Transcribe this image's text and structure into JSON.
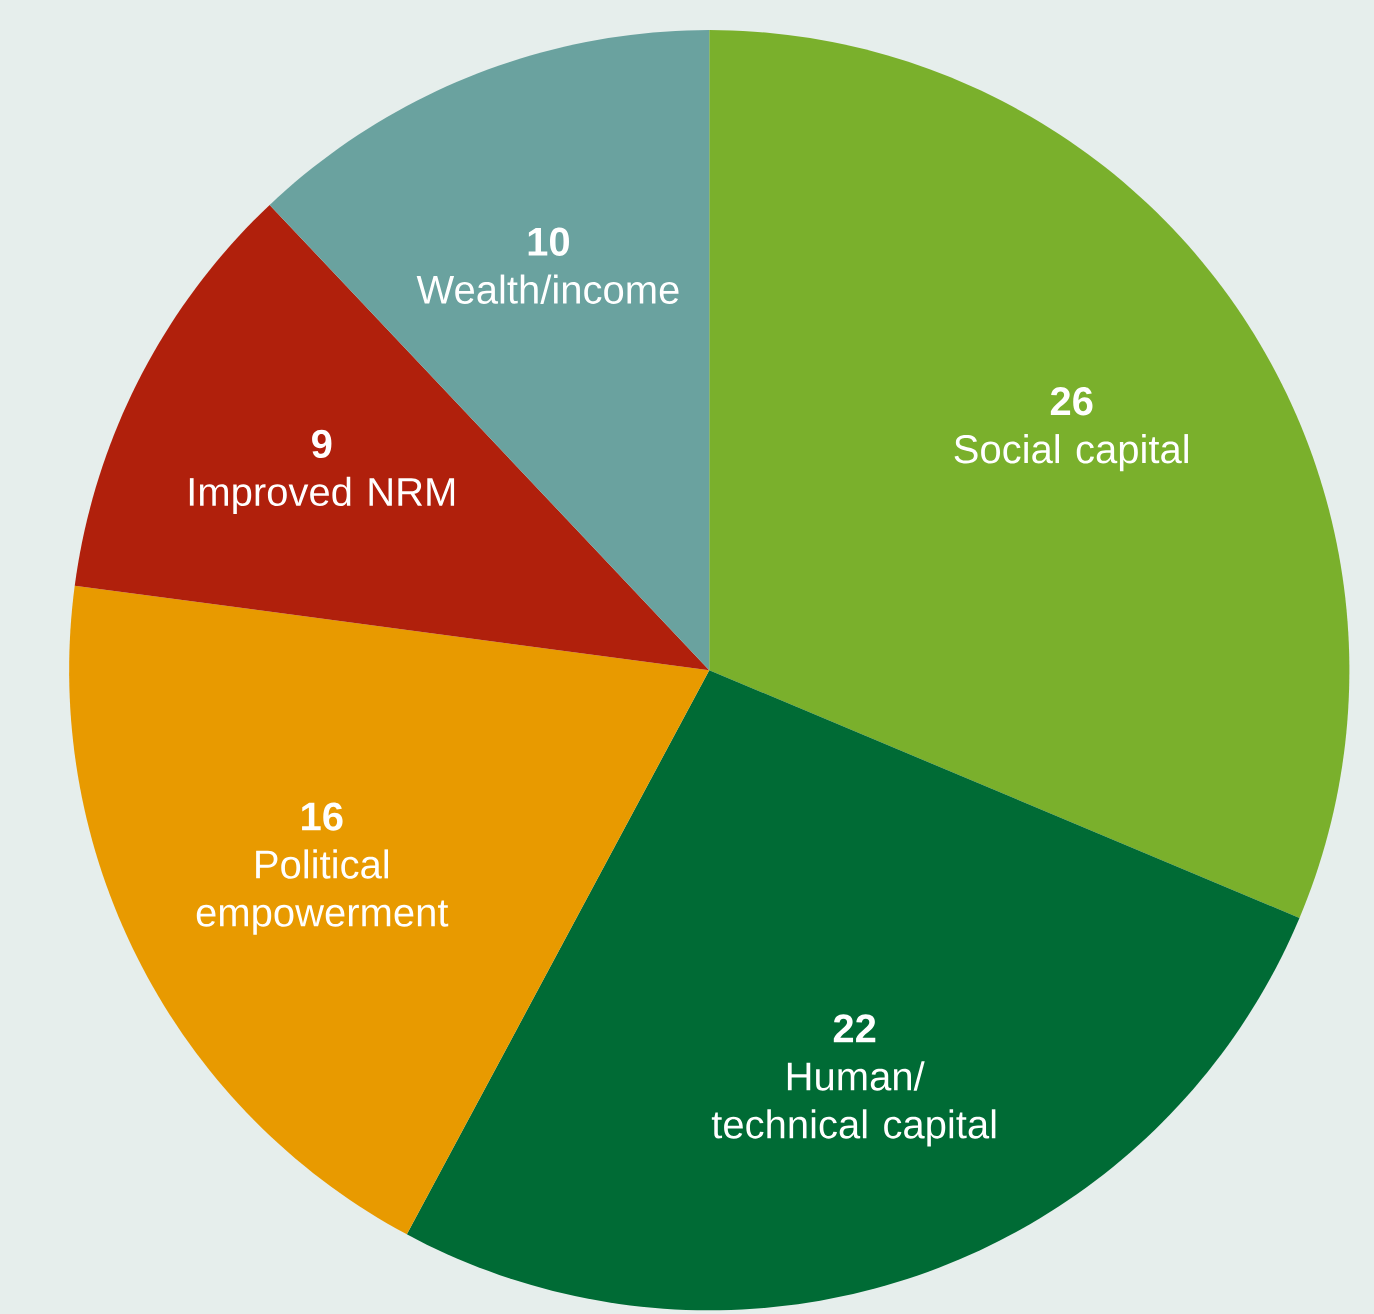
{
  "chart_data": {
    "type": "pie",
    "categories": [
      "Social capital",
      "Human/ technical capital",
      "Political empowerment",
      "Improved NRM",
      "Wealth/income"
    ],
    "values": [
      26,
      22,
      16,
      9,
      10
    ],
    "colors": [
      "#7ab02c",
      "#006b35",
      "#e89a00",
      "#b0200c",
      "#6aa29f"
    ],
    "data_labels": true
  }
}
